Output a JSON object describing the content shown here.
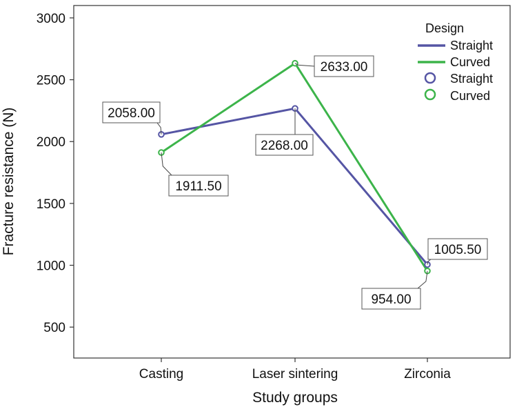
{
  "chart_data": {
    "type": "line",
    "title": "",
    "xlabel": "Study groups",
    "ylabel": "Fracture resistance (N)",
    "categories": [
      "Casting",
      "Laser sintering",
      "Zirconia"
    ],
    "ylim": [
      250,
      3100
    ],
    "yticks": [
      500,
      1000,
      1500,
      2000,
      2500,
      3000
    ],
    "grid": false,
    "legend": {
      "title": "Design",
      "placement": "top-right",
      "line_entries": [
        "Straight",
        "Curved"
      ],
      "marker_entries": [
        "Straight",
        "Curved"
      ]
    },
    "series": [
      {
        "name": "Straight",
        "color": "#5555a4",
        "values": [
          2058.0,
          2268.0,
          1005.5
        ],
        "labels": [
          "2058.00",
          "2268.00",
          "1005.50"
        ]
      },
      {
        "name": "Curved",
        "color": "#3cb44a",
        "values": [
          1911.5,
          2633.0,
          954.0
        ],
        "labels": [
          "1911.50",
          "2633.00",
          "954.00"
        ]
      }
    ]
  }
}
